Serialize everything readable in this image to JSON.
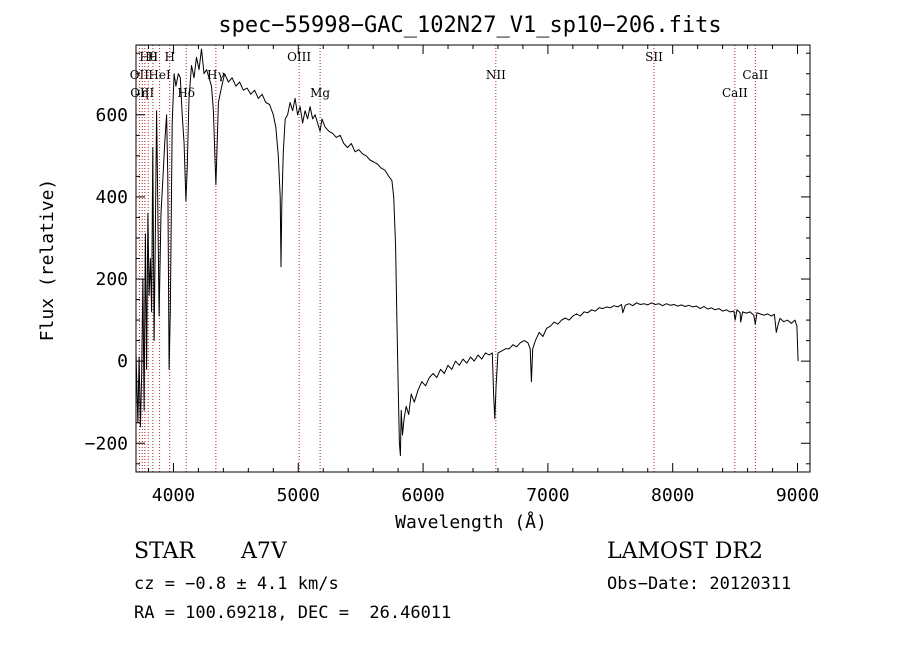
{
  "chart_data": {
    "type": "line",
    "title": "spec−55998−GAC_102N27_V1_sp10−206.fits",
    "xlabel": "Wavelength (Å)",
    "ylabel": "Flux (relative)",
    "xlim": [
      3700,
      9100
    ],
    "ylim": [
      -270,
      770
    ],
    "xticks": [
      4000,
      5000,
      6000,
      7000,
      8000,
      9000
    ],
    "xtick_labels": [
      "4000",
      "5000",
      "6000",
      "7000",
      "8000",
      "9000"
    ],
    "yticks": [
      -200,
      0,
      200,
      400,
      600
    ],
    "ytick_labels": [
      "−200",
      "0",
      "200",
      "400",
      "600"
    ],
    "grid": false,
    "series": [
      {
        "color": "#000000",
        "points": [
          [
            3700,
            20
          ],
          [
            3715,
            -150
          ],
          [
            3725,
            10
          ],
          [
            3735,
            -160
          ],
          [
            3745,
            -40
          ],
          [
            3755,
            200
          ],
          [
            3765,
            -120
          ],
          [
            3775,
            310
          ],
          [
            3785,
            -20
          ],
          [
            3795,
            360
          ],
          [
            3805,
            160
          ],
          [
            3815,
            250
          ],
          [
            3825,
            120
          ],
          [
            3835,
            520
          ],
          [
            3845,
            50
          ],
          [
            3855,
            300
          ],
          [
            3865,
            610
          ],
          [
            3875,
            380
          ],
          [
            3885,
            110
          ],
          [
            3900,
            360
          ],
          [
            3915,
            440
          ],
          [
            3930,
            530
          ],
          [
            3945,
            600
          ],
          [
            3955,
            450
          ],
          [
            3965,
            -20
          ],
          [
            3975,
            120
          ],
          [
            3990,
            580
          ],
          [
            4005,
            700
          ],
          [
            4020,
            670
          ],
          [
            4040,
            700
          ],
          [
            4055,
            690
          ],
          [
            4070,
            600
          ],
          [
            4085,
            530
          ],
          [
            4100,
            390
          ],
          [
            4110,
            470
          ],
          [
            4125,
            640
          ],
          [
            4145,
            720
          ],
          [
            4165,
            690
          ],
          [
            4185,
            740
          ],
          [
            4205,
            710
          ],
          [
            4225,
            760
          ],
          [
            4245,
            700
          ],
          [
            4265,
            710
          ],
          [
            4285,
            690
          ],
          [
            4305,
            670
          ],
          [
            4320,
            610
          ],
          [
            4333,
            490
          ],
          [
            4340,
            430
          ],
          [
            4347,
            500
          ],
          [
            4360,
            630
          ],
          [
            4380,
            660
          ],
          [
            4410,
            700
          ],
          [
            4440,
            680
          ],
          [
            4470,
            690
          ],
          [
            4500,
            670
          ],
          [
            4530,
            680
          ],
          [
            4560,
            660
          ],
          [
            4590,
            665
          ],
          [
            4620,
            650
          ],
          [
            4650,
            660
          ],
          [
            4680,
            640
          ],
          [
            4710,
            650
          ],
          [
            4740,
            630
          ],
          [
            4770,
            625
          ],
          [
            4800,
            600
          ],
          [
            4820,
            570
          ],
          [
            4840,
            500
          ],
          [
            4855,
            400
          ],
          [
            4862,
            230
          ],
          [
            4868,
            380
          ],
          [
            4880,
            510
          ],
          [
            4895,
            590
          ],
          [
            4915,
            600
          ],
          [
            4935,
            630
          ],
          [
            4955,
            610
          ],
          [
            4975,
            640
          ],
          [
            4995,
            600
          ],
          [
            5015,
            620
          ],
          [
            5035,
            580
          ],
          [
            5055,
            610
          ],
          [
            5075,
            590
          ],
          [
            5095,
            620
          ],
          [
            5115,
            590
          ],
          [
            5135,
            600
          ],
          [
            5155,
            580
          ],
          [
            5175,
            560
          ],
          [
            5190,
            590
          ],
          [
            5215,
            570
          ],
          [
            5245,
            560
          ],
          [
            5275,
            555
          ],
          [
            5305,
            545
          ],
          [
            5335,
            550
          ],
          [
            5365,
            530
          ],
          [
            5395,
            520
          ],
          [
            5425,
            530
          ],
          [
            5455,
            510
          ],
          [
            5485,
            515
          ],
          [
            5515,
            505
          ],
          [
            5545,
            500
          ],
          [
            5575,
            490
          ],
          [
            5605,
            485
          ],
          [
            5635,
            480
          ],
          [
            5665,
            470
          ],
          [
            5695,
            465
          ],
          [
            5725,
            450
          ],
          [
            5750,
            440
          ],
          [
            5765,
            400
          ],
          [
            5780,
            280
          ],
          [
            5790,
            100
          ],
          [
            5800,
            -50
          ],
          [
            5810,
            -200
          ],
          [
            5818,
            -230
          ],
          [
            5825,
            -120
          ],
          [
            5835,
            -180
          ],
          [
            5848,
            -140
          ],
          [
            5865,
            -110
          ],
          [
            5885,
            -130
          ],
          [
            5905,
            -80
          ],
          [
            5930,
            -100
          ],
          [
            5960,
            -70
          ],
          [
            5990,
            -50
          ],
          [
            6020,
            -60
          ],
          [
            6050,
            -40
          ],
          [
            6080,
            -30
          ],
          [
            6110,
            -40
          ],
          [
            6140,
            -20
          ],
          [
            6170,
            -30
          ],
          [
            6200,
            -10
          ],
          [
            6230,
            -20
          ],
          [
            6260,
            0
          ],
          [
            6290,
            -10
          ],
          [
            6320,
            5
          ],
          [
            6350,
            -5
          ],
          [
            6380,
            10
          ],
          [
            6410,
            0
          ],
          [
            6440,
            15
          ],
          [
            6470,
            5
          ],
          [
            6500,
            20
          ],
          [
            6530,
            15
          ],
          [
            6555,
            20
          ],
          [
            6565,
            -80
          ],
          [
            6575,
            -140
          ],
          [
            6585,
            -60
          ],
          [
            6600,
            20
          ],
          [
            6630,
            25
          ],
          [
            6660,
            30
          ],
          [
            6690,
            30
          ],
          [
            6720,
            40
          ],
          [
            6750,
            35
          ],
          [
            6780,
            45
          ],
          [
            6810,
            50
          ],
          [
            6840,
            45
          ],
          [
            6858,
            30
          ],
          [
            6868,
            -50
          ],
          [
            6878,
            30
          ],
          [
            6900,
            50
          ],
          [
            6930,
            70
          ],
          [
            6960,
            60
          ],
          [
            6990,
            80
          ],
          [
            7020,
            85
          ],
          [
            7050,
            95
          ],
          [
            7080,
            90
          ],
          [
            7110,
            100
          ],
          [
            7140,
            105
          ],
          [
            7170,
            100
          ],
          [
            7200,
            110
          ],
          [
            7230,
            115
          ],
          [
            7260,
            110
          ],
          [
            7290,
            120
          ],
          [
            7320,
            118
          ],
          [
            7350,
            125
          ],
          [
            7380,
            122
          ],
          [
            7410,
            130
          ],
          [
            7440,
            128
          ],
          [
            7470,
            132
          ],
          [
            7500,
            130
          ],
          [
            7530,
            135
          ],
          [
            7560,
            132
          ],
          [
            7590,
            138
          ],
          [
            7600,
            118
          ],
          [
            7620,
            136
          ],
          [
            7650,
            140
          ],
          [
            7680,
            135
          ],
          [
            7710,
            142
          ],
          [
            7740,
            138
          ],
          [
            7770,
            140
          ],
          [
            7800,
            137
          ],
          [
            7830,
            142
          ],
          [
            7860,
            138
          ],
          [
            7890,
            140
          ],
          [
            7920,
            135
          ],
          [
            7950,
            140
          ],
          [
            7980,
            136
          ],
          [
            8010,
            138
          ],
          [
            8040,
            134
          ],
          [
            8070,
            137
          ],
          [
            8100,
            133
          ],
          [
            8130,
            136
          ],
          [
            8160,
            132
          ],
          [
            8190,
            134
          ],
          [
            8220,
            128
          ],
          [
            8250,
            133
          ],
          [
            8280,
            127
          ],
          [
            8310,
            130
          ],
          [
            8340,
            125
          ],
          [
            8370,
            128
          ],
          [
            8400,
            122
          ],
          [
            8430,
            125
          ],
          [
            8460,
            120
          ],
          [
            8490,
            122
          ],
          [
            8500,
            100
          ],
          [
            8515,
            125
          ],
          [
            8540,
            118
          ],
          [
            8545,
            95
          ],
          [
            8560,
            120
          ],
          [
            8590,
            117
          ],
          [
            8620,
            120
          ],
          [
            8650,
            112
          ],
          [
            8662,
            90
          ],
          [
            8675,
            118
          ],
          [
            8700,
            115
          ],
          [
            8730,
            112
          ],
          [
            8760,
            115
          ],
          [
            8790,
            110
          ],
          [
            8815,
            114
          ],
          [
            8830,
            70
          ],
          [
            8845,
            90
          ],
          [
            8860,
            104
          ],
          [
            8890,
            96
          ],
          [
            8920,
            100
          ],
          [
            8950,
            92
          ],
          [
            8980,
            100
          ],
          [
            8995,
            85
          ],
          [
            9005,
            0
          ]
        ]
      }
    ],
    "lines": [
      {
        "wavelength": 3727,
        "label": "OII",
        "row": 2
      },
      {
        "wavelength": 3750,
        "label": "OIII",
        "row": 3
      },
      {
        "wavelength": 3771,
        "label": "η",
        "row": 3
      },
      {
        "wavelength": 3798,
        "label": "Hθ",
        "row": 1
      },
      {
        "wavelength": 3835,
        "label": "H",
        "row": 1
      },
      {
        "wavelength": 3889,
        "label": "HeI",
        "row": 2
      },
      {
        "wavelength": 3970,
        "label": "H",
        "row": 1
      },
      {
        "wavelength": 4102,
        "label": "Hδ",
        "row": 3
      },
      {
        "wavelength": 4340,
        "label": "Hγ",
        "row": 2
      },
      {
        "wavelength": 5007,
        "label": "OIII",
        "row": 1
      },
      {
        "wavelength": 5175,
        "label": "Mg",
        "row": 3
      },
      {
        "wavelength": 6583,
        "label": "NII",
        "row": 2
      },
      {
        "wavelength": 7850,
        "label": "SII",
        "row": 1
      },
      {
        "wavelength": 8498,
        "label": "CaII",
        "row": 3
      },
      {
        "wavelength": 8662,
        "label": "CaII",
        "row": 2
      }
    ]
  },
  "info": {
    "class": "STAR",
    "subclass": "A7V",
    "survey": "LAMOST DR2",
    "cz": "cz = −0.8 ± 4.1 km/s",
    "obs_date": "Obs−Date: 20120311",
    "radec": "RA = 100.69218, DEC =  26.46011"
  }
}
